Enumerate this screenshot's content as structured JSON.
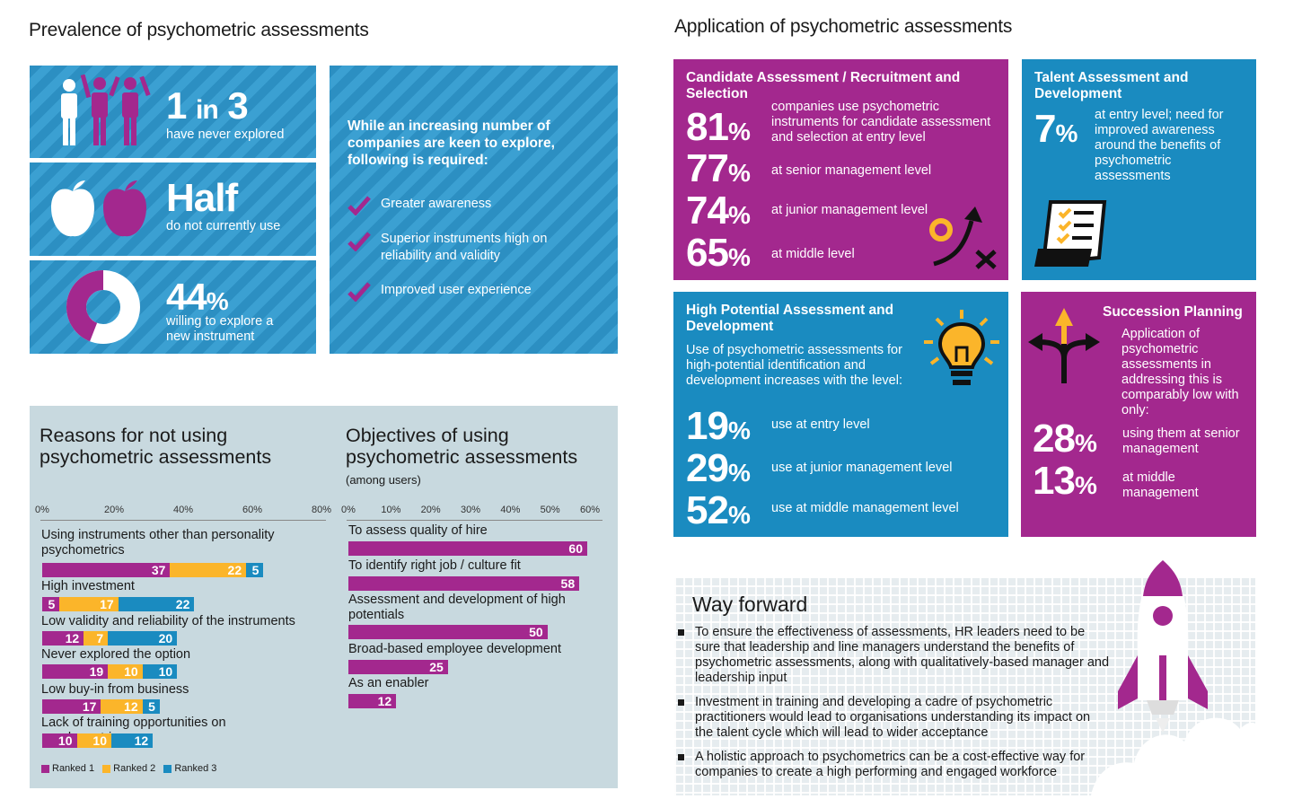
{
  "prevalence": {
    "title": "Prevalence of psychometric assessments",
    "stat1_num": "1",
    "stat1_in": "in",
    "stat1_den": "3",
    "stat1_label": "have never explored",
    "stat2_value": "Half",
    "stat2_label": "do not currently use",
    "stat3_value": "44",
    "stat3_unit": "%",
    "stat3_label1": "willing to explore a",
    "stat3_label2": "new instrument",
    "stat3_fraction": 0.44,
    "required_heading": "While an increasing number of companies are keen to explore, following is required:",
    "required_items": [
      "Greater awareness",
      "Superior instruments high on reliability and validity",
      "Improved user experience"
    ]
  },
  "application": {
    "title": "Application of psychometric assessments",
    "candidate": {
      "title": "Candidate Assessment / Recruitment and Selection",
      "rows": [
        {
          "pct": "81",
          "text": "companies use psychometric instruments for candidate assessment and selection at entry level"
        },
        {
          "pct": "77",
          "text": "at senior management level"
        },
        {
          "pct": "74",
          "text": "at junior management level"
        },
        {
          "pct": "65",
          "text": "at middle level"
        }
      ]
    },
    "talent": {
      "title": "Talent Assessment and Development",
      "pct": "7",
      "text": "at entry level; need for improved awareness around the benefits of psychometric assessments"
    },
    "high_potential": {
      "title": "High Potential Assessment and Development",
      "intro": "Use of psychometric assessments for high-potential identification and development increases with the level:",
      "rows": [
        {
          "pct": "19",
          "text": "use at entry level"
        },
        {
          "pct": "29",
          "text": "use at junior management level"
        },
        {
          "pct": "52",
          "text": "use at middle management level"
        }
      ]
    },
    "succession": {
      "title": "Succession Planning",
      "intro": "Application of psychometric assessments in addressing this is comparably low with only:",
      "rows": [
        {
          "pct": "28",
          "text": "using them at senior management"
        },
        {
          "pct": "13",
          "text": "at middle management"
        }
      ]
    },
    "pct_sign": "%"
  },
  "way_forward": {
    "title": "Way forward",
    "items": [
      "To ensure the effectiveness of assessments, HR leaders need to be sure that leadership and line managers understand the benefits of psychometric assessments, along with qualitatively-based manager and leadership input",
      "Investment in training and developing a cadre of psychometric practitioners would lead to organisations understanding its impact on the talent cycle which will lead to wider acceptance",
      "A holistic approach to psychometrics can be a cost-effective way for companies to create a high performing and engaged workforce"
    ]
  },
  "colors": {
    "blue": "#1a8bc0",
    "purple": "#a3288e",
    "yellow": "#fbb52a",
    "panel": "#c8d9df"
  },
  "chart_data": [
    {
      "type": "bar",
      "orientation": "horizontal",
      "stacked": true,
      "title": "Reasons for not using psychometric assessments",
      "ticks": [
        "0%",
        "20%",
        "40%",
        "60%",
        "80%"
      ],
      "xlim": [
        0,
        80
      ],
      "categories": [
        "Using instruments other than personality psychometrics",
        "High investment",
        "Low validity and reliability of the instruments",
        "Never explored the option",
        "Low buy-in from business",
        "Lack of training opportunities on psychometrics"
      ],
      "series": [
        {
          "name": "Ranked 1",
          "color": "#a3288e",
          "values": [
            37,
            5,
            12,
            19,
            17,
            10
          ]
        },
        {
          "name": "Ranked 2",
          "color": "#fbb52a",
          "values": [
            22,
            17,
            7,
            10,
            12,
            10
          ]
        },
        {
          "name": "Ranked 3",
          "color": "#1a8bc0",
          "values": [
            5,
            22,
            20,
            10,
            5,
            12
          ]
        }
      ],
      "legend": "bottom-left"
    },
    {
      "type": "bar",
      "orientation": "horizontal",
      "title": "Objectives of using psychometric assessments",
      "subtitle": "(among users)",
      "ticks": [
        "0%",
        "10%",
        "20%",
        "30%",
        "40%",
        "50%",
        "60%"
      ],
      "xlim": [
        0,
        60
      ],
      "categories": [
        "To assess quality of hire",
        "To identify right job / culture fit",
        "Assessment and development of high potentials",
        "Broad-based employee development",
        "As an enabler"
      ],
      "values": [
        60,
        58,
        50,
        25,
        12
      ]
    }
  ]
}
